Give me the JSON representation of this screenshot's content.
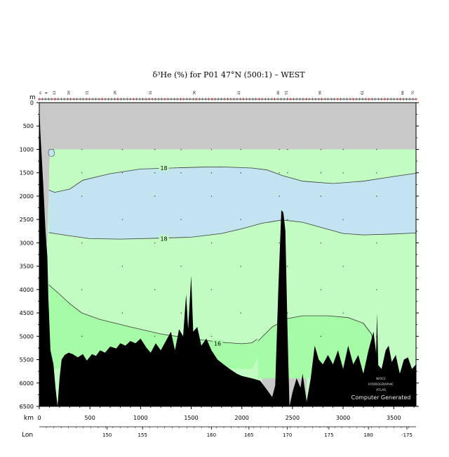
{
  "chart_data": {
    "type": "section",
    "title": "δ³He (%) for P01 47°N (500:1) – WEST",
    "y_axis": {
      "unit_label": "m",
      "min": 0,
      "max": 6500,
      "ticks": [
        0,
        500,
        1000,
        1500,
        2000,
        2500,
        3000,
        3500,
        4000,
        4500,
        5000,
        5500,
        6000,
        6500
      ]
    },
    "x_axis": {
      "unit_label": "km",
      "min": 0,
      "max": 3720,
      "ticks": [
        0,
        500,
        1000,
        1500,
        2000,
        2500,
        3000,
        3500
      ]
    },
    "lon_axis": {
      "label": "Lon",
      "ticks": [
        {
          "km": 670,
          "label": "150"
        },
        {
          "km": 1020,
          "label": "155"
        },
        {
          "km": 1700,
          "label": "160"
        },
        {
          "km": 2070,
          "label": "165"
        },
        {
          "km": 2450,
          "label": "170"
        },
        {
          "km": 2860,
          "label": "175"
        },
        {
          "km": 3250,
          "label": "180"
        },
        {
          "km": 3630,
          "label": "-175"
        }
      ]
    },
    "station_labels": [
      {
        "km": 20,
        "label": "m"
      },
      {
        "km": 80,
        "label": "6"
      },
      {
        "km": 160,
        "label": "11"
      },
      {
        "km": 300,
        "label": "16"
      },
      {
        "km": 480,
        "label": "21"
      },
      {
        "km": 760,
        "label": "26"
      },
      {
        "km": 1110,
        "label": "31"
      },
      {
        "km": 1540,
        "label": "36"
      },
      {
        "km": 1980,
        "label": "41"
      },
      {
        "km": 2370,
        "label": "46"
      },
      {
        "km": 2450,
        "label": "51"
      },
      {
        "km": 2780,
        "label": "56"
      },
      {
        "km": 3200,
        "label": "61"
      },
      {
        "km": 3600,
        "label": "66"
      },
      {
        "km": 3700,
        "label": "70"
      }
    ],
    "contour_levels": [
      16,
      18
    ],
    "contour_labels": [
      {
        "value": "18",
        "km": 1230,
        "depth": 1400
      },
      {
        "value": "18",
        "km": 1230,
        "depth": 2910
      },
      {
        "value": "16",
        "km": 1760,
        "depth": 5150
      }
    ],
    "fill_colors": {
      "no_data": "#c8c8c8",
      "below_16": "#a6fba6",
      "16_to_18": "#c2fcc2",
      "above_18": "#c2e4f0",
      "seafloor": "#000000",
      "contour": "#3a3a3a"
    },
    "credit": {
      "org_lines": [
        "WOCE",
        "HYDROGRAPHIC",
        "ATLAS"
      ],
      "note": "Computer Generated"
    }
  }
}
